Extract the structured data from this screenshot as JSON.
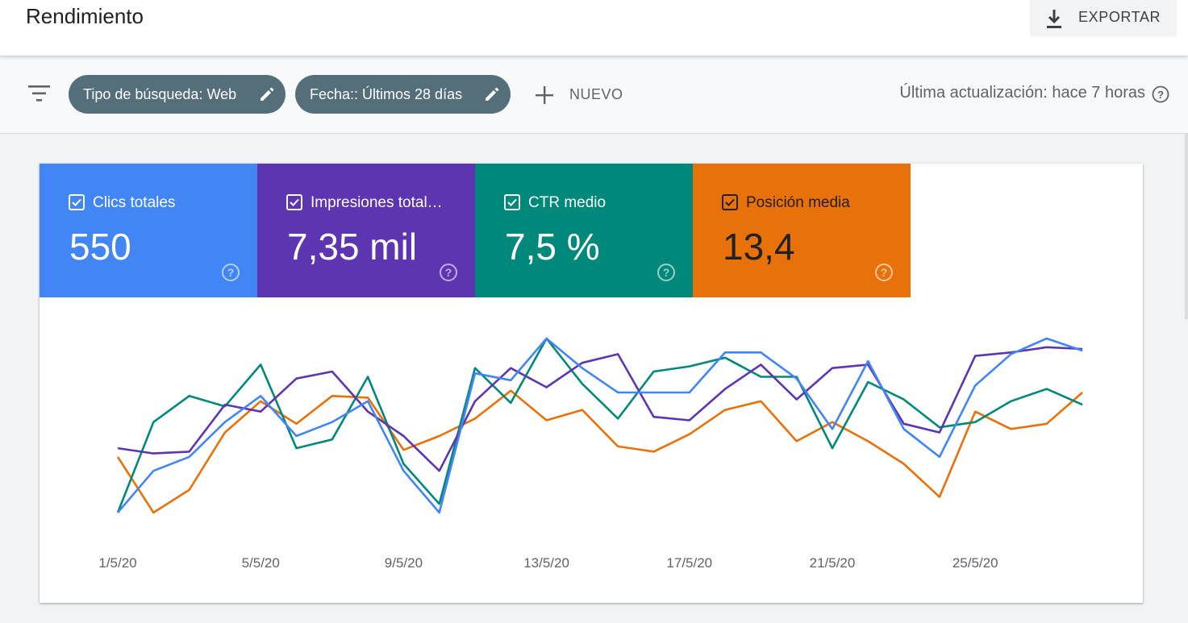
{
  "header": {
    "title": "Rendimiento",
    "export_label": "EXPORTAR"
  },
  "filters": {
    "chips": [
      {
        "label": "Tipo de búsqueda: Web"
      },
      {
        "label": "Fecha:: Últimos 28 días"
      }
    ],
    "new_label": "NUEVO",
    "last_update": "Última actualización: hace 7 horas"
  },
  "metrics": [
    {
      "label": "Clics totales",
      "value": "550",
      "color": "#4285f4",
      "checked": true
    },
    {
      "label": "Impresiones total…",
      "value": "7,35 mil",
      "color": "#5e35b1",
      "checked": true
    },
    {
      "label": "CTR medio",
      "value": "7,5 %",
      "color": "#00897b",
      "checked": true
    },
    {
      "label": "Posición media",
      "value": "13,4",
      "color": "#e8710a",
      "checked": true
    }
  ],
  "chart_data": {
    "type": "line",
    "x": [
      "1/5/20",
      "2/5/20",
      "3/5/20",
      "4/5/20",
      "5/5/20",
      "6/5/20",
      "7/5/20",
      "8/5/20",
      "9/5/20",
      "10/5/20",
      "11/5/20",
      "12/5/20",
      "13/5/20",
      "14/5/20",
      "15/5/20",
      "16/5/20",
      "17/5/20",
      "18/5/20",
      "19/5/20",
      "20/5/20",
      "21/5/20",
      "22/5/20",
      "23/5/20",
      "24/5/20",
      "25/5/20",
      "26/5/20",
      "27/5/20",
      "28/5/20"
    ],
    "x_tick_labels": [
      "1/5/20",
      "5/5/20",
      "9/5/20",
      "13/5/20",
      "17/5/20",
      "21/5/20",
      "25/5/20"
    ],
    "axes_shown": false,
    "series": [
      {
        "metric": "Clics totales",
        "color": "#4285f4",
        "values": [
          0.0,
          0.24,
          0.32,
          0.52,
          0.67,
          0.44,
          0.52,
          0.64,
          0.24,
          0.0,
          0.8,
          0.76,
          1.0,
          0.83,
          0.69,
          0.69,
          0.69,
          0.92,
          0.92,
          0.77,
          0.48,
          0.87,
          0.48,
          0.32,
          0.73,
          0.91,
          1.0,
          0.93
        ]
      },
      {
        "metric": "Impresiones totales",
        "color": "#5e35b1",
        "values": [
          0.37,
          0.34,
          0.35,
          0.62,
          0.58,
          0.77,
          0.81,
          0.58,
          0.44,
          0.24,
          0.64,
          0.83,
          0.72,
          0.86,
          0.91,
          0.55,
          0.53,
          0.71,
          0.85,
          0.65,
          0.83,
          0.85,
          0.51,
          0.46,
          0.9,
          0.92,
          0.95,
          0.94
        ]
      },
      {
        "metric": "CTR medio",
        "color": "#00897b",
        "values": [
          0.0,
          0.52,
          0.67,
          0.61,
          0.85,
          0.37,
          0.42,
          0.78,
          0.28,
          0.05,
          0.83,
          0.63,
          1.0,
          0.74,
          0.54,
          0.81,
          0.84,
          0.89,
          0.78,
          0.78,
          0.37,
          0.75,
          0.65,
          0.49,
          0.52,
          0.64,
          0.71,
          0.62
        ]
      },
      {
        "metric": "Posición media",
        "color": "#e8710a",
        "values": [
          0.32,
          0.0,
          0.13,
          0.46,
          0.64,
          0.51,
          0.67,
          0.66,
          0.36,
          0.44,
          0.54,
          0.7,
          0.53,
          0.59,
          0.38,
          0.35,
          0.45,
          0.59,
          0.64,
          0.41,
          0.52,
          0.41,
          0.28,
          0.09,
          0.58,
          0.48,
          0.51,
          0.69
        ]
      }
    ]
  }
}
